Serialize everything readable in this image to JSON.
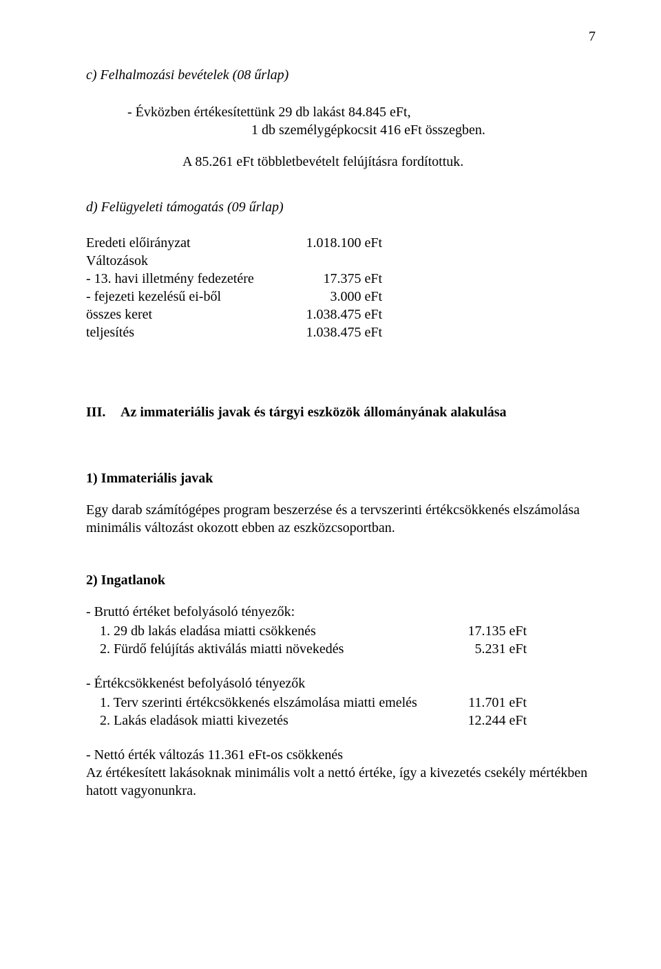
{
  "page_number": "7",
  "section_c": {
    "title": "c) Felhalmozási bevételek (08 űrlap)",
    "line1": "- Évközben értékesítettünk 29 db lakást 84.845 eFt,",
    "line2": "1 db személygépkocsit 416 eFt összegben.",
    "line3": "A 85.261 eFt többletbevételt felújításra fordítottuk."
  },
  "section_d": {
    "title": "d) Felügyeleti támogatás (09 űrlap)",
    "rows": [
      {
        "label": "Eredeti előirányzat",
        "value": "1.018.100 eFt"
      },
      {
        "label": "Változások",
        "value": ""
      },
      {
        "label": "- 13. havi illetmény fedezetére",
        "value": "17.375 eFt"
      },
      {
        "label": "- fejezeti kezelésű ei-ből",
        "value": "3.000 eFt"
      },
      {
        "label": "összes keret",
        "value": "1.038.475 eFt"
      },
      {
        "label": "teljesítés",
        "value": "1.038.475 eFt"
      }
    ]
  },
  "chapter3": {
    "num": "III.",
    "title": "Az immateriális javak és tárgyi eszközök állományának alakulása"
  },
  "sub1": {
    "title": "1) Immateriális javak",
    "para": "Egy darab számítógépes program beszerzése és a tervszerinti értékcsökkenés elszámolása minimális változást okozott ebben az eszközcsoportban."
  },
  "sub2": {
    "title": "2) Ingatlanok",
    "group_a": {
      "heading": "- Bruttó értéket befolyásoló tényezők:",
      "items": [
        {
          "label": "1. 29 db lakás eladása miatti csökkenés",
          "value": "17.135 eFt"
        },
        {
          "label": "2. Fürdő felújítás aktiválás miatti növekedés",
          "value": "5.231 eFt"
        }
      ]
    },
    "group_b": {
      "heading": "- Értékcsökkenést befolyásoló tényezők",
      "items": [
        {
          "label": "1. Terv szerinti értékcsökkenés elszámolása miatti emelés",
          "value": "11.701 eFt"
        },
        {
          "label": "2. Lakás eladások miatti kivezetés",
          "value": "12.244 eFt"
        }
      ]
    },
    "footer_line1": "- Nettó érték változás 11.361 eFt-os csökkenés",
    "footer_line2": "Az értékesített lakásoknak minimális volt a nettó értéke, így a kivezetés csekély mértékben hatott vagyonunkra."
  }
}
